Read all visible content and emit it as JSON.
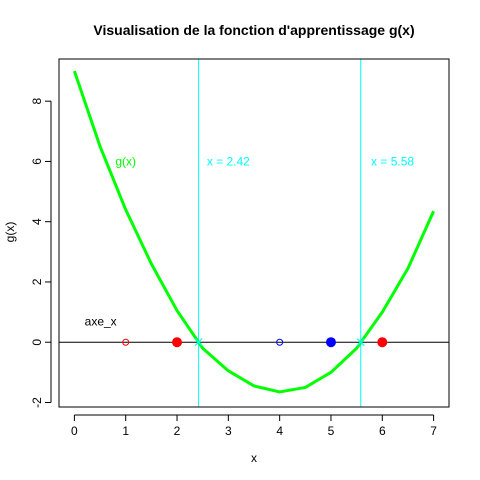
{
  "chart_data": {
    "type": "line",
    "title": "Visualisation de la fonction d'apprentissage g(x)",
    "xlabel": "x",
    "ylabel": "g(x)",
    "xlim": [
      -0.3,
      7.3
    ],
    "ylim": [
      -2.15,
      9.4
    ],
    "x_ticks": [
      0,
      1,
      2,
      3,
      4,
      5,
      6,
      7
    ],
    "y_ticks": [
      -2,
      0,
      2,
      4,
      6,
      8
    ],
    "grid": false,
    "series": [
      {
        "name": "g(x)",
        "color": "#00ff00",
        "x": [
          0,
          0.5,
          1,
          1.5,
          2,
          2.5,
          3,
          3.5,
          4,
          4.5,
          5,
          5.5,
          6,
          6.5,
          7
        ],
        "y": [
          9,
          6.5,
          4.4,
          2.6,
          1.05,
          -0.2,
          -0.95,
          -1.45,
          -1.65,
          -1.5,
          -1.0,
          -0.2,
          1.0,
          2.45,
          4.35
        ]
      }
    ],
    "horizontal_line": {
      "y": 0,
      "label": "axe_x",
      "label_x": 0.2,
      "label_y": 0.55,
      "color": "#000000"
    },
    "series_label": {
      "text": "g(x)",
      "x": 1.0,
      "y": 6.0,
      "color": "#00ff00"
    },
    "vertical_lines": [
      {
        "x": 2.42,
        "label": "x = 2.42",
        "label_x": 3.0,
        "label_y": 6.0,
        "color": "#00ffff"
      },
      {
        "x": 5.58,
        "label": "x = 5.58",
        "label_x": 6.2,
        "label_y": 6.0,
        "color": "#00ffff"
      }
    ],
    "points": [
      {
        "x": 1,
        "y": 0,
        "color": "#ff0000",
        "filled": false,
        "size": "small"
      },
      {
        "x": 2,
        "y": 0,
        "color": "#ff0000",
        "filled": true,
        "size": "large"
      },
      {
        "x": 4,
        "y": 0,
        "color": "#0000ff",
        "filled": false,
        "size": "small"
      },
      {
        "x": 5,
        "y": 0,
        "color": "#0000ff",
        "filled": true,
        "size": "large"
      },
      {
        "x": 6,
        "y": 0,
        "color": "#ff0000",
        "filled": true,
        "size": "large"
      }
    ],
    "root_markers": [
      {
        "x": 2.42,
        "y": 0,
        "color": "#00ffff"
      },
      {
        "x": 5.58,
        "y": 0,
        "color": "#00ffff"
      }
    ]
  }
}
